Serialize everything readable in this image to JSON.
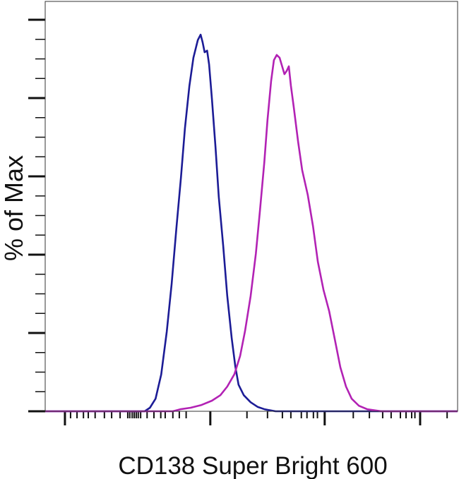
{
  "chart_data": {
    "type": "line",
    "title": "",
    "xlabel": "CD138 Super Bright 600",
    "ylabel": "% of Max",
    "xlim": [
      0,
      1024
    ],
    "ylim": [
      0,
      105
    ],
    "x_scale": "logicle (unlabeled ticks)",
    "grid": false,
    "legend": "none",
    "y_ticks_major": [
      0,
      20,
      40,
      60,
      80,
      100
    ],
    "y_ticks_minor_step": 5,
    "x_ticks_major": [
      49,
      410,
      694,
      931
    ],
    "x_ticks_minor": [
      63,
      79,
      95,
      107,
      124,
      147,
      165,
      186,
      205,
      210,
      216,
      221,
      226,
      231,
      237,
      253,
      270,
      287,
      298,
      317,
      333,
      350,
      501,
      552,
      589,
      610,
      636,
      650,
      666,
      676,
      765,
      805,
      838,
      859,
      882,
      896,
      910,
      918,
      998
    ],
    "series": [
      {
        "color": "#1c1c96",
        "x": [
          0,
          247,
          260,
          274,
          288,
          302,
          314,
          326,
          337,
          347,
          358,
          368,
          379,
          386,
          391,
          396,
          402,
          407,
          414,
          423,
          431,
          442,
          452,
          463,
          472,
          480,
          493,
          510,
          528,
          545,
          572,
          1024
        ],
        "y": [
          0,
          0,
          0.9,
          3.2,
          9.4,
          20.4,
          32.6,
          47.0,
          59.6,
          72.3,
          83.1,
          90.3,
          94.8,
          96.2,
          94.2,
          91.7,
          92.1,
          88.6,
          79.8,
          67.4,
          54.8,
          42.2,
          29.5,
          18.7,
          11.5,
          6.8,
          4.1,
          2.3,
          1.1,
          0.5,
          0,
          0
        ]
      },
      {
        "color": "#b222b4",
        "x": [
          0,
          317,
          335,
          361,
          388,
          414,
          435,
          452,
          470,
          484,
          496,
          510,
          523,
          533,
          544,
          552,
          561,
          568,
          575,
          582,
          589,
          594,
          600,
          605,
          610,
          617,
          628,
          638,
          652,
          665,
          677,
          691,
          705,
          719,
          733,
          747,
          761,
          779,
          800,
          835,
          1024
        ],
        "y": [
          0,
          0,
          0.5,
          0.9,
          1.6,
          2.7,
          4.1,
          6.3,
          9.5,
          14.1,
          20.4,
          29.4,
          40.2,
          51.0,
          63.6,
          74.4,
          84.3,
          89.7,
          91.0,
          90.3,
          87.9,
          86.1,
          87.0,
          88.1,
          83.2,
          77.8,
          68.8,
          61.6,
          55.3,
          47.2,
          38.2,
          31.0,
          25.6,
          18.4,
          11.2,
          6.3,
          3.2,
          1.4,
          0.5,
          0,
          0
        ]
      }
    ]
  }
}
